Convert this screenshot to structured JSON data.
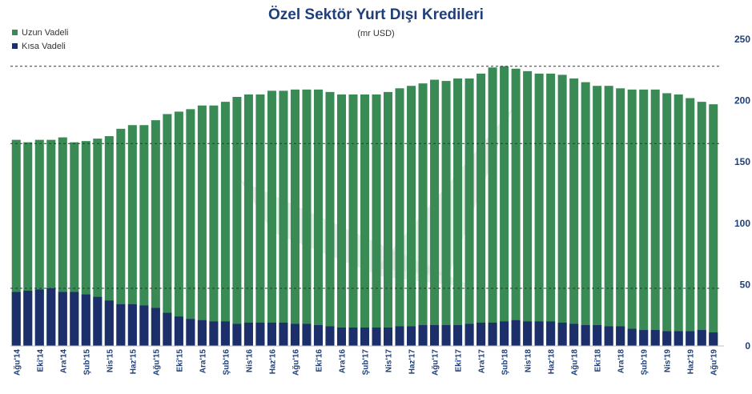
{
  "chart_data": {
    "type": "bar",
    "stacked": false,
    "title": "Özel Sektör Yurt Dışı Kredileri",
    "subtitle": "(mr USD)",
    "ylim": [
      0,
      250
    ],
    "yticks": [
      0,
      50,
      100,
      150,
      200,
      250
    ],
    "legend_position": "top-left",
    "colors": {
      "uzun": "#3a8a55",
      "kisa": "#1c2f6b",
      "gridline": "#333333"
    },
    "dashed_gridlines": [
      47,
      165,
      228
    ],
    "categories": [
      "Ağu'14",
      "Eyl'14",
      "Eki'14",
      "Kas'14",
      "Ara'14",
      "Oca'15",
      "Şub'15",
      "Mar'15",
      "Nis'15",
      "May'15",
      "Haz'15",
      "Tem'15",
      "Ağu'15",
      "Eyl'15",
      "Eki'15",
      "Kas'15",
      "Ara'15",
      "Oca'16",
      "Şub'16",
      "Mar'16",
      "Nis'16",
      "May'16",
      "Haz'16",
      "Tem'16",
      "Ağu'16",
      "Eyl'16",
      "Eki'16",
      "Kas'16",
      "Ara'16",
      "Oca'17",
      "Şub'17",
      "Mar'17",
      "Nis'17",
      "May'17",
      "Haz'17",
      "Tem'17",
      "Ağu'17",
      "Eyl'17",
      "Eki'17",
      "Kas'17",
      "Ara'17",
      "Oca'18",
      "Şub'18",
      "Mar'18",
      "Nis'18",
      "May'18",
      "Haz'18",
      "Tem'18",
      "Ağu'18",
      "Eyl'18",
      "Eki'18",
      "Kas'18",
      "Ara'18",
      "Oca'19",
      "Şub'19",
      "Mar'19",
      "Nis'19",
      "May'19",
      "Haz'19",
      "Tem'19",
      "Ağu'19"
    ],
    "xtick_labels": [
      "Ağu'14",
      "",
      "Eki'14",
      "",
      "Ara'14",
      "",
      "Şub'15",
      "",
      "Nis'15",
      "",
      "Haz'15",
      "",
      "Ağu'15",
      "",
      "Eki'15",
      "",
      "Ara'15",
      "",
      "Şub'16",
      "",
      "Nis'16",
      "",
      "Haz'16",
      "",
      "Ağu'16",
      "",
      "Eki'16",
      "",
      "Ara'16",
      "",
      "Şub'17",
      "",
      "Nis'17",
      "",
      "Haz'17",
      "",
      "Ağu'17",
      "",
      "Eki'17",
      "",
      "Ara'17",
      "",
      "Şub'18",
      "",
      "Nis'18",
      "",
      "Haz'18",
      "",
      "Ağu'18",
      "",
      "Eki'18",
      "",
      "Ara'18",
      "",
      "Şub'19",
      "",
      "Nis'19",
      "",
      "Haz'19",
      "",
      "Ağu'19"
    ],
    "series": [
      {
        "name": "Uzun Vadeli",
        "values": [
          168,
          166,
          168,
          168,
          170,
          166,
          167,
          169,
          171,
          177,
          180,
          180,
          184,
          189,
          191,
          193,
          196,
          196,
          199,
          203,
          205,
          205,
          208,
          208,
          209,
          209,
          209,
          207,
          205,
          205,
          205,
          205,
          207,
          210,
          212,
          214,
          217,
          216,
          218,
          218,
          222,
          227,
          228,
          226,
          224,
          222,
          222,
          221,
          218,
          215,
          212,
          212,
          210,
          209,
          209,
          209,
          206,
          205,
          202,
          199,
          197
        ]
      },
      {
        "name": "Kısa Vadeli",
        "values": [
          44,
          45,
          46,
          47,
          44,
          44,
          42,
          40,
          37,
          34,
          34,
          33,
          31,
          27,
          24,
          22,
          21,
          20,
          20,
          18,
          19,
          19,
          19,
          19,
          18,
          18,
          17,
          16,
          15,
          15,
          15,
          15,
          15,
          16,
          16,
          17,
          17,
          17,
          17,
          18,
          19,
          19,
          20,
          21,
          20,
          20,
          20,
          19,
          18,
          17,
          17,
          16,
          16,
          14,
          13,
          13,
          12,
          12,
          12,
          13,
          11
        ]
      }
    ]
  }
}
